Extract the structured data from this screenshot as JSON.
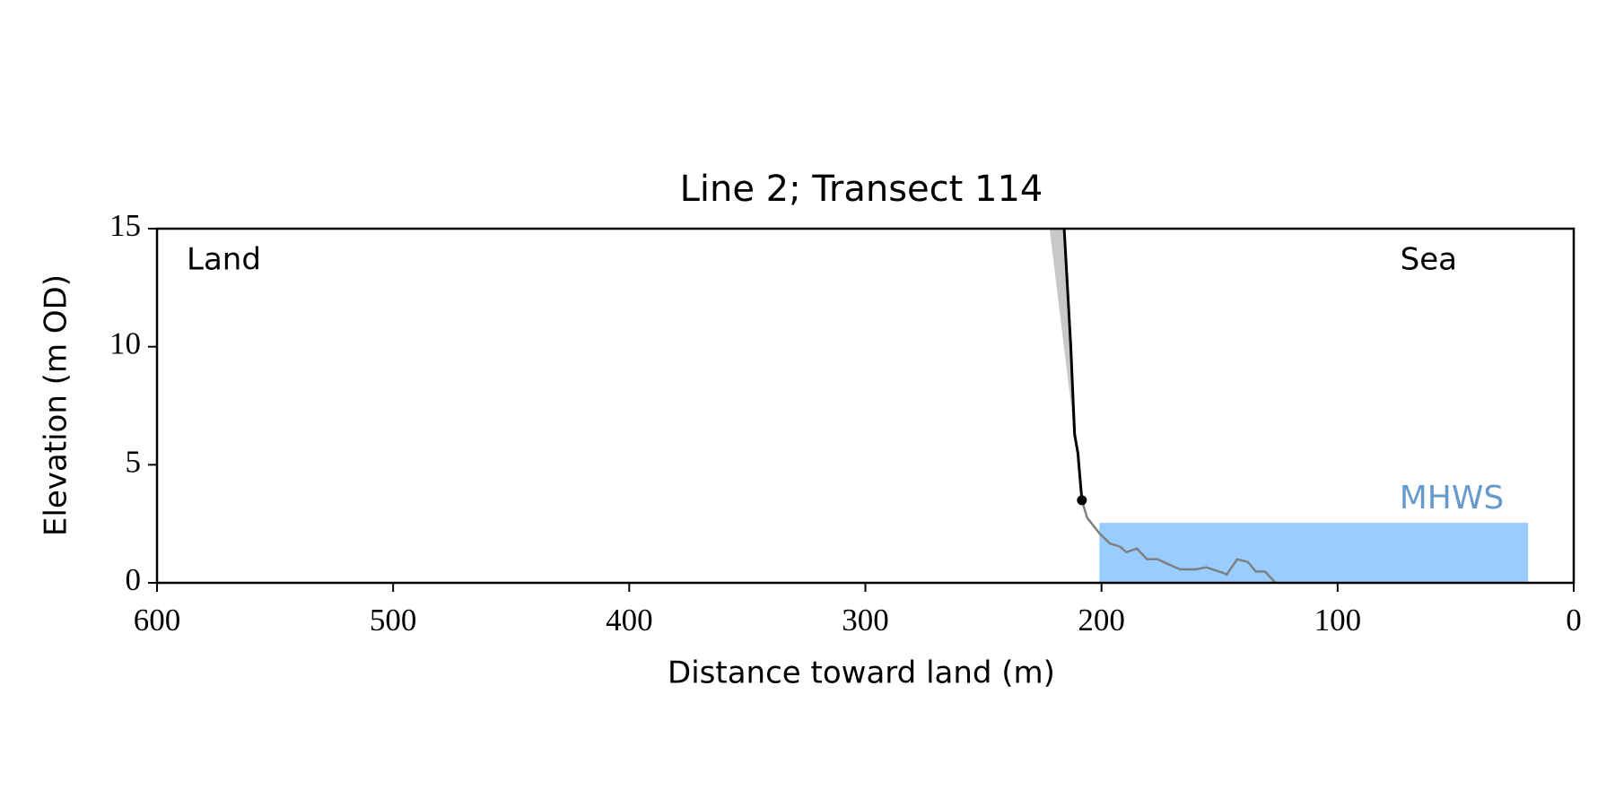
{
  "chart_data": {
    "type": "line",
    "title": "Line 2; Transect 114",
    "xlabel": "Distance toward land (m)",
    "ylabel": "Elevation (m OD)",
    "xlim": [
      600,
      0
    ],
    "ylim": [
      0,
      15
    ],
    "xticks": [
      600,
      500,
      400,
      300,
      200,
      100,
      0
    ],
    "yticks": [
      0,
      5,
      10,
      15
    ],
    "annotations": [
      "Land",
      "Sea"
    ],
    "series": [
      {
        "style": "area",
        "color": "#c8c8c8",
        "x": [
          222,
          215.8,
          211.4
        ],
        "values": [
          15,
          15,
          6.3
        ]
      },
      {
        "style": "line",
        "color": "#808080",
        "x": [
          208.3,
          206.1,
          200.9,
          196.5,
          192.1,
          189.5,
          185,
          180.7,
          176.3,
          171.9,
          166.7,
          160,
          155.7,
          149,
          147,
          142.5,
          138,
          134.6,
          130.7,
          126.3
        ],
        "values": [
          3.5,
          2.76,
          2.1,
          1.67,
          1.53,
          1.3,
          1.45,
          1.0,
          1.0,
          0.8,
          0.57,
          0.57,
          0.66,
          0.44,
          0.35,
          1.0,
          0.88,
          0.48,
          0.48,
          0
        ]
      },
      {
        "style": "line",
        "color": "#000000",
        "x": [
          215.8,
          213,
          211.4,
          210,
          208.3
        ],
        "values": [
          15,
          10,
          6.3,
          5.5,
          3.5
        ]
      }
    ],
    "marker": {
      "x": 208.3,
      "y": 3.5,
      "color": "#000000"
    },
    "mhws": {
      "label": "MHWS",
      "level": 2.54,
      "x": [
        200.9,
        19.3
      ],
      "color": "#99ccff",
      "label_color": "#6699cc"
    }
  }
}
